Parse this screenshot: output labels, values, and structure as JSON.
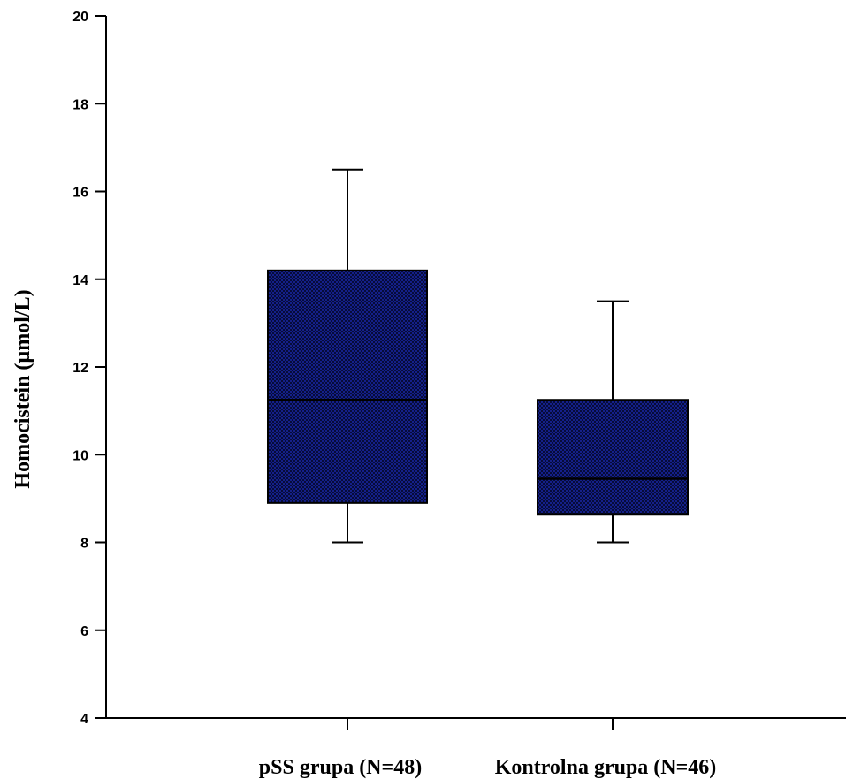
{
  "chart_data": {
    "type": "box",
    "title": "",
    "xlabel": "",
    "ylabel": "Homocistein (µmol/L)",
    "ylim": [
      4,
      20
    ],
    "yticks": [
      4,
      6,
      8,
      10,
      12,
      14,
      16,
      18,
      20
    ],
    "grid": false,
    "legend": "none",
    "box_color": "#101a6e",
    "categories": [
      "pSS grupa (N=48)",
      "Kontrolna grupa (N=46)"
    ],
    "boxes": [
      {
        "min": 8.0,
        "q1": 8.9,
        "median": 11.25,
        "q3": 14.2,
        "max": 16.5
      },
      {
        "min": 8.0,
        "q1": 8.65,
        "median": 9.45,
        "q3": 11.25,
        "max": 13.5
      }
    ]
  }
}
